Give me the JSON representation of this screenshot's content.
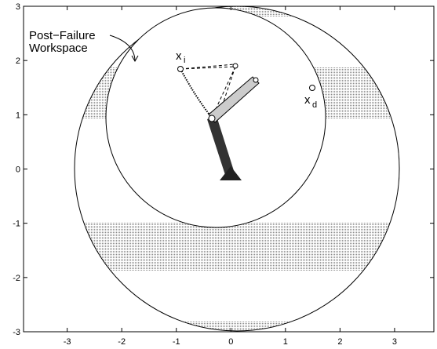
{
  "chart_data": {
    "type": "workspace",
    "xlim": [
      -3.8,
      3.72
    ],
    "ylim": [
      -3,
      3
    ],
    "xticks": [
      -3,
      -2,
      -1,
      0,
      1,
      2,
      3
    ],
    "yticks": [
      -3,
      -2,
      -1,
      0,
      1,
      2,
      3
    ],
    "annotation": [
      "Post−Failure",
      "Workspace"
    ],
    "points": [
      {
        "label": "x",
        "sub": "i"
      },
      {
        "label": "x",
        "sub": "d"
      }
    ]
  }
}
